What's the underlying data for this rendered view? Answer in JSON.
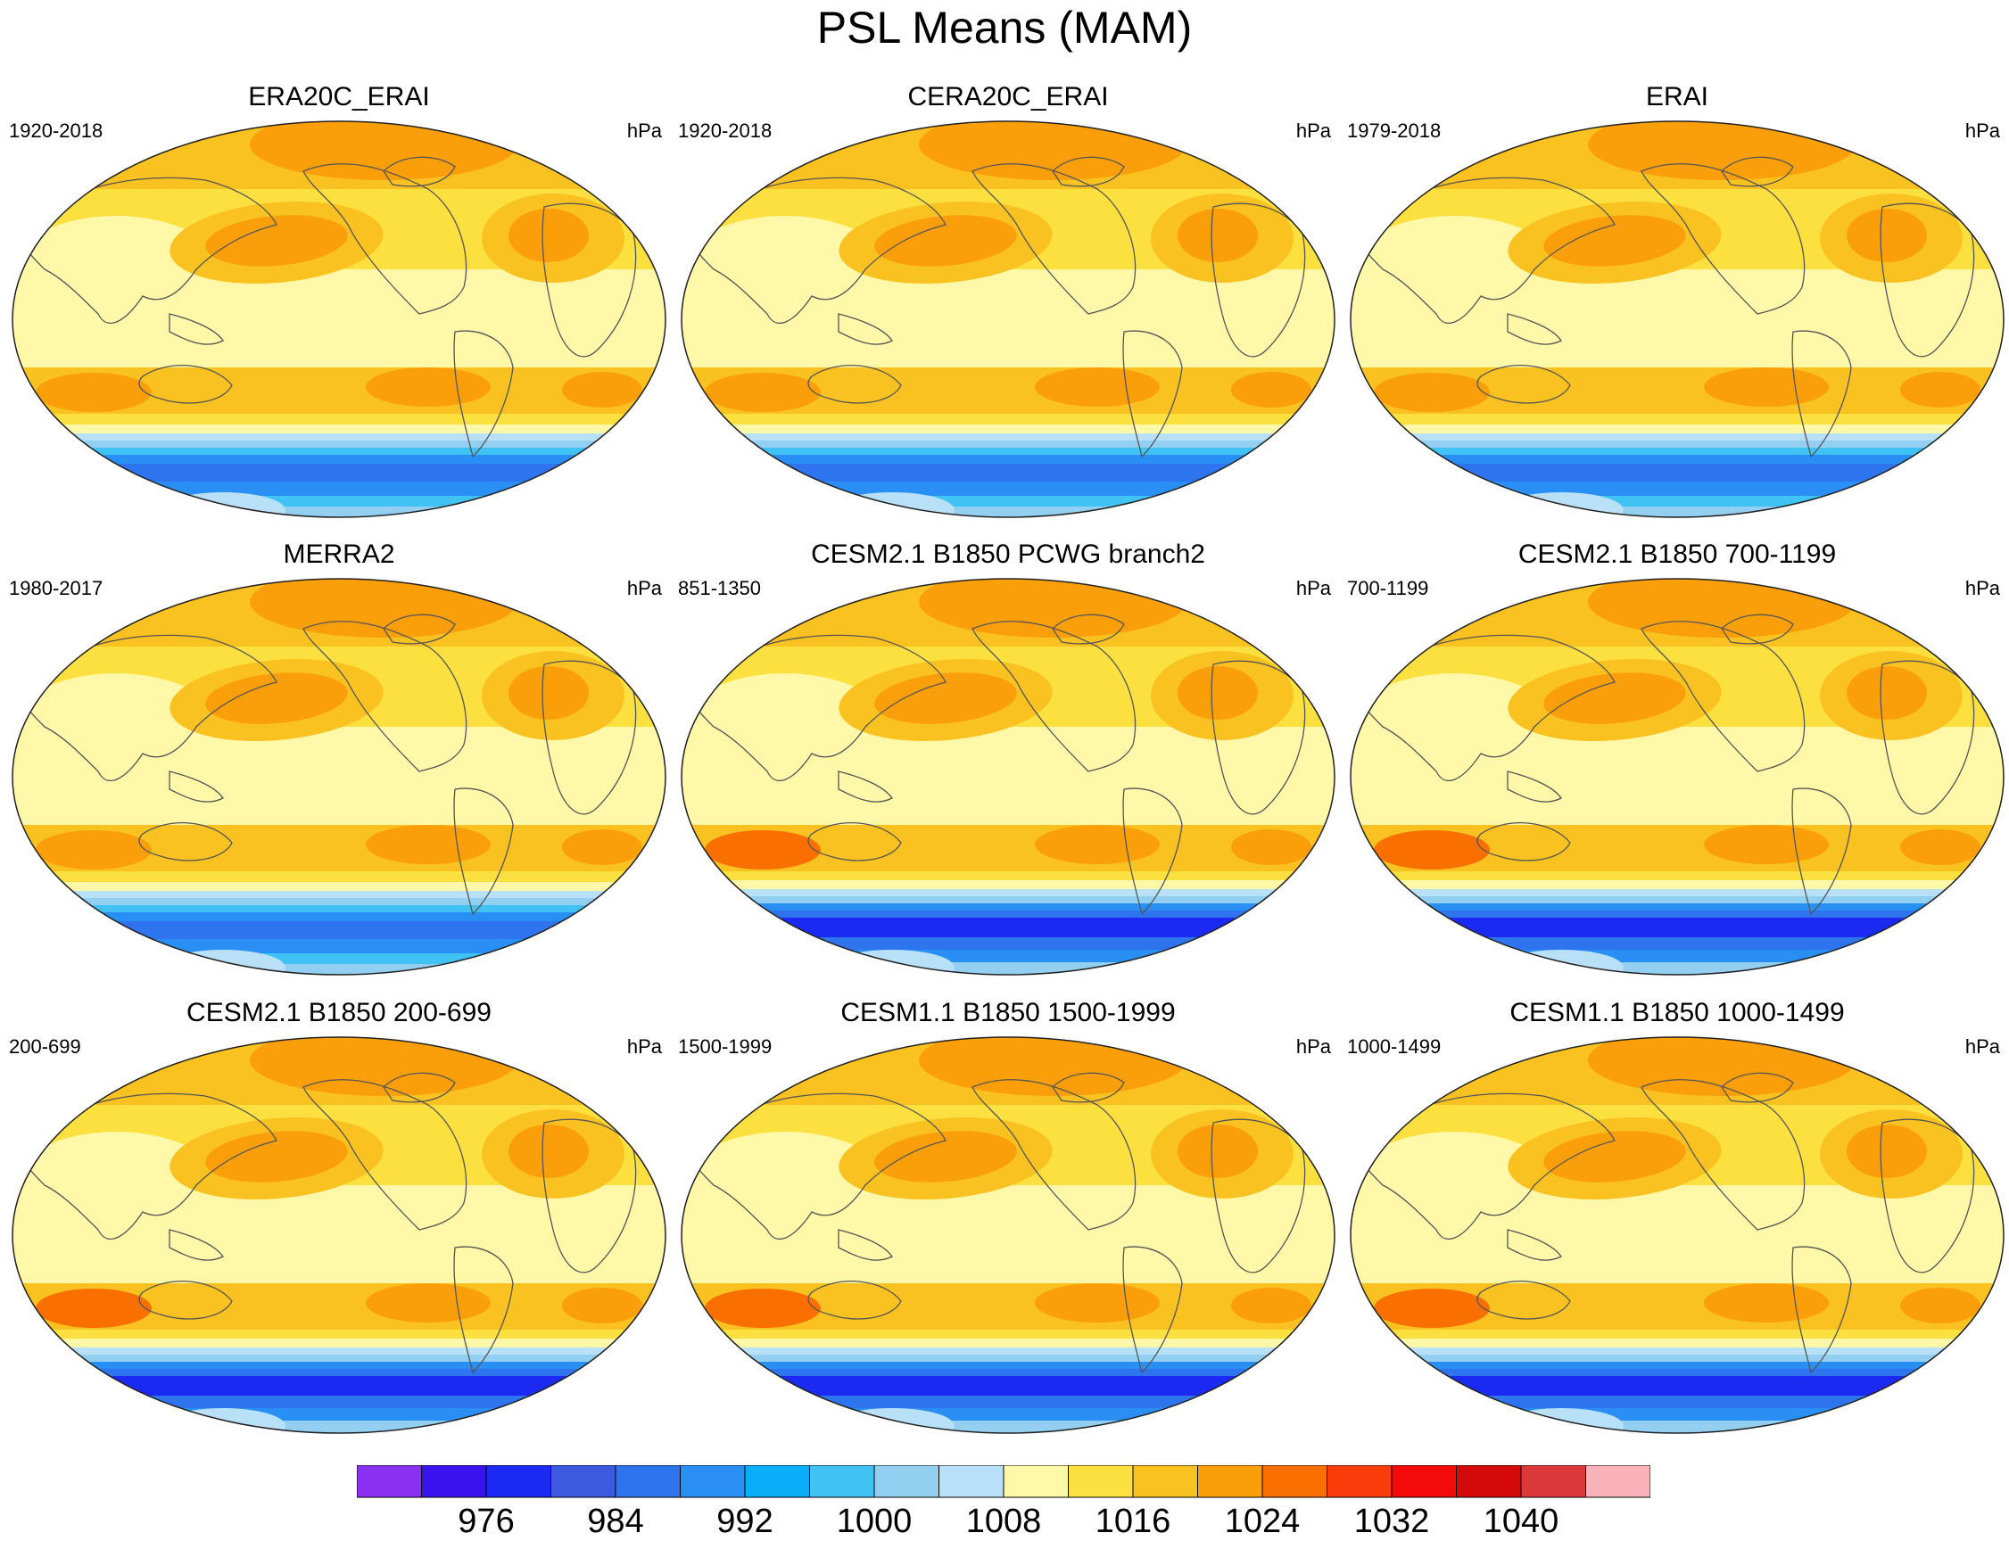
{
  "title": "PSL Means (MAM)",
  "panels": [
    {
      "title": "ERA20C_ERAI",
      "period": "1920-2018",
      "units": "hPa"
    },
    {
      "title": "CERA20C_ERAI",
      "period": "1920-2018",
      "units": "hPa"
    },
    {
      "title": "ERAI",
      "period": "1979-2018",
      "units": "hPa"
    },
    {
      "title": "MERRA2",
      "period": "1980-2017",
      "units": "hPa"
    },
    {
      "title": "CESM2.1 B1850 PCWG branch2",
      "period": "851-1350",
      "units": "hPa"
    },
    {
      "title": "CESM2.1 B1850 700-1199",
      "period": "700-1199",
      "units": "hPa"
    },
    {
      "title": "CESM2.1 B1850 200-699",
      "period": "200-699",
      "units": "hPa"
    },
    {
      "title": "CESM1.1 B1850 1500-1999",
      "period": "1500-1999",
      "units": "hPa"
    },
    {
      "title": "CESM1.1 B1850 1000-1499",
      "period": "1000-1499",
      "units": "hPa"
    }
  ],
  "colorbar": {
    "colors": [
      "#8b2ff0",
      "#3a12f0",
      "#1a2af2",
      "#3c5ae0",
      "#2f74ef",
      "#2a8ff5",
      "#0aaef8",
      "#40c2f4",
      "#92cff0",
      "#b8e0f6",
      "#fff8a8",
      "#fce040",
      "#fac220",
      "#fa9f0a",
      "#fa7000",
      "#fa3c0a",
      "#f50a0a",
      "#d40a0a",
      "#dc3a3a",
      "#f8b2b8"
    ],
    "labels": [
      "976",
      "984",
      "992",
      "1000",
      "1008",
      "1016",
      "1024",
      "1032",
      "1040"
    ]
  }
}
